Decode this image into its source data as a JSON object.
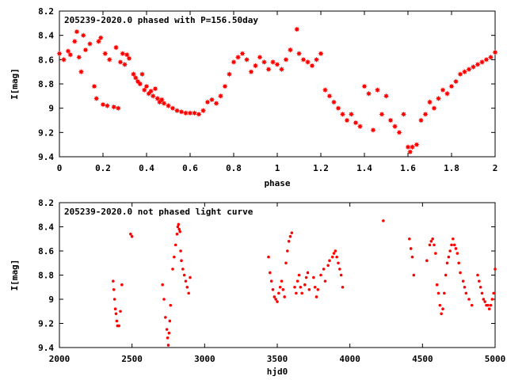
{
  "chart_data": [
    {
      "type": "scatter",
      "title": "205239-2020.0 phased with P=156.50day",
      "xlabel": "phase",
      "ylabel": "I[mag]",
      "xlim": [
        0,
        2
      ],
      "ylim": [
        8.2,
        9.4
      ],
      "y_inverted": true,
      "x_ticks": [
        "0",
        "0.2",
        "0.4",
        "0.6",
        "0.8",
        "1",
        "1.2",
        "1.4",
        "1.6",
        "1.8",
        "2"
      ],
      "y_ticks": [
        "8.2",
        "8.4",
        "8.6",
        "8.8",
        "9",
        "9.2",
        "9.4"
      ],
      "grid": false,
      "marker_color": "#ff0000",
      "marker": "filled-star",
      "series": [
        {
          "x": [
            0.0,
            0.02,
            0.04,
            0.05,
            0.07,
            0.08,
            0.09,
            0.1,
            0.11,
            0.12,
            0.14,
            0.16,
            0.17,
            0.18,
            0.19,
            0.2,
            0.21,
            0.22,
            0.23,
            0.25,
            0.26,
            0.27,
            0.28,
            0.29,
            0.3,
            0.31,
            0.32,
            0.34,
            0.35,
            0.36,
            0.37,
            0.38,
            0.39,
            0.4,
            0.41,
            0.42,
            0.43,
            0.44,
            0.45,
            0.46,
            0.47,
            0.48,
            0.5,
            0.52,
            0.54,
            0.56,
            0.58,
            0.6,
            0.62,
            0.64,
            0.66,
            0.68,
            0.7,
            0.72,
            0.74,
            0.76,
            0.78,
            0.8,
            0.82,
            0.84,
            0.86,
            0.88,
            0.9,
            0.92,
            0.94,
            0.96,
            0.98,
            1.0,
            1.02,
            1.04,
            1.06,
            1.09,
            1.1,
            1.12,
            1.14,
            1.16,
            1.18,
            1.2,
            1.22,
            1.24,
            1.26,
            1.28,
            1.3,
            1.32,
            1.34,
            1.36,
            1.38,
            1.4,
            1.42,
            1.44,
            1.46,
            1.48,
            1.5,
            1.52,
            1.54,
            1.56,
            1.58,
            1.6,
            1.61,
            1.62,
            1.64,
            1.66,
            1.68,
            1.7,
            1.72,
            1.74,
            1.76,
            1.78,
            1.8,
            1.82,
            1.84,
            1.86,
            1.88,
            1.9,
            1.92,
            1.94,
            1.96,
            1.98,
            2.0
          ],
          "y": [
            8.55,
            8.6,
            8.53,
            8.56,
            8.45,
            8.37,
            8.58,
            8.7,
            8.4,
            8.52,
            8.47,
            8.82,
            8.92,
            8.45,
            8.42,
            8.97,
            8.55,
            8.98,
            8.6,
            8.99,
            8.5,
            9.0,
            8.62,
            8.55,
            8.64,
            8.56,
            8.59,
            8.72,
            8.75,
            8.78,
            8.8,
            8.72,
            8.85,
            8.82,
            8.88,
            8.86,
            8.9,
            8.84,
            8.92,
            8.95,
            8.93,
            8.96,
            8.98,
            9.0,
            9.02,
            9.03,
            9.04,
            9.04,
            9.04,
            9.05,
            9.02,
            8.95,
            8.93,
            8.96,
            8.9,
            8.82,
            8.72,
            8.62,
            8.58,
            8.55,
            8.6,
            8.7,
            8.65,
            8.58,
            8.62,
            8.68,
            8.62,
            8.64,
            8.68,
            8.6,
            8.52,
            8.35,
            8.55,
            8.6,
            8.62,
            8.65,
            8.6,
            8.55,
            8.85,
            8.9,
            8.95,
            9.0,
            9.05,
            9.1,
            9.05,
            9.12,
            9.15,
            8.82,
            8.88,
            9.18,
            8.85,
            9.05,
            8.9,
            9.1,
            9.15,
            9.2,
            9.05,
            9.32,
            9.36,
            9.32,
            9.3,
            9.1,
            9.05,
            8.95,
            9.0,
            8.92,
            8.85,
            8.88,
            8.82,
            8.78,
            8.72,
            8.7,
            8.68,
            8.66,
            8.64,
            8.62,
            8.6,
            8.58,
            8.54
          ]
        }
      ]
    },
    {
      "type": "scatter",
      "title": "205239-2020.0 not phased light curve",
      "xlabel": "hjd0",
      "ylabel": "I[mag]",
      "xlim": [
        2000,
        5000
      ],
      "ylim": [
        8.2,
        9.4
      ],
      "y_inverted": true,
      "x_ticks": [
        "2000",
        "2500",
        "3000",
        "3500",
        "4000",
        "4500",
        "5000"
      ],
      "y_ticks": [
        "8.2",
        "8.4",
        "8.6",
        "8.8",
        "9",
        "9.2",
        "9.4"
      ],
      "grid": false,
      "marker_color": "#ff0000",
      "marker": "small-dot",
      "series": [
        {
          "x": [
            2370,
            2375,
            2380,
            2385,
            2390,
            2395,
            2400,
            2410,
            2420,
            2430,
            2490,
            2500,
            2710,
            2720,
            2730,
            2740,
            2745,
            2750,
            2755,
            2760,
            2765,
            2780,
            2790,
            2800,
            2810,
            2815,
            2820,
            2825,
            2830,
            2835,
            2840,
            2850,
            2860,
            2870,
            2880,
            2890,
            2900,
            3440,
            3450,
            3460,
            3470,
            3480,
            3490,
            3500,
            3510,
            3520,
            3530,
            3540,
            3550,
            3560,
            3570,
            3580,
            3590,
            3600,
            3620,
            3630,
            3640,
            3650,
            3660,
            3670,
            3690,
            3700,
            3710,
            3720,
            3750,
            3760,
            3770,
            3780,
            3800,
            3820,
            3830,
            3850,
            3860,
            3880,
            3890,
            3900,
            3910,
            3920,
            3930,
            3940,
            3950,
            4230,
            4410,
            4420,
            4430,
            4440,
            4530,
            4550,
            4560,
            4570,
            4580,
            4590,
            4600,
            4610,
            4620,
            4630,
            4640,
            4650,
            4660,
            4670,
            4680,
            4690,
            4700,
            4710,
            4720,
            4730,
            4740,
            4750,
            4760,
            4780,
            4790,
            4800,
            4820,
            4840,
            4880,
            4890,
            4900,
            4910,
            4920,
            4930,
            4940,
            4950,
            4960,
            4970,
            4980,
            4990,
            5000
          ],
          "y": [
            8.85,
            8.92,
            9.0,
            9.08,
            9.12,
            9.18,
            9.22,
            9.22,
            9.1,
            8.88,
            8.46,
            8.48,
            8.88,
            9.0,
            9.15,
            9.25,
            9.32,
            9.38,
            9.28,
            9.18,
            9.05,
            8.75,
            8.65,
            8.55,
            8.46,
            8.4,
            8.38,
            8.42,
            8.44,
            8.6,
            8.68,
            8.75,
            8.8,
            8.85,
            8.9,
            8.95,
            8.82,
            8.65,
            8.78,
            8.85,
            8.92,
            8.98,
            9.0,
            9.02,
            8.95,
            8.9,
            8.85,
            8.92,
            8.98,
            8.7,
            8.6,
            8.52,
            8.48,
            8.45,
            8.9,
            8.95,
            8.85,
            8.8,
            8.9,
            8.95,
            8.88,
            8.82,
            8.78,
            8.92,
            8.82,
            8.9,
            8.98,
            8.92,
            8.8,
            8.75,
            8.85,
            8.72,
            8.68,
            8.65,
            8.62,
            8.6,
            8.65,
            8.7,
            8.75,
            8.8,
            8.9,
            8.35,
            8.5,
            8.58,
            8.65,
            8.8,
            8.68,
            8.55,
            8.52,
            8.5,
            8.55,
            8.62,
            8.88,
            8.95,
            9.05,
            9.12,
            9.08,
            8.95,
            8.8,
            8.7,
            8.65,
            8.6,
            8.55,
            8.5,
            8.55,
            8.58,
            8.62,
            8.7,
            8.78,
            8.85,
            8.9,
            8.95,
            9.0,
            9.05,
            8.8,
            8.85,
            8.9,
            8.95,
            9.0,
            9.02,
            9.05,
            9.05,
            9.08,
            9.05,
            9.0,
            8.95,
            8.75
          ]
        }
      ]
    }
  ]
}
